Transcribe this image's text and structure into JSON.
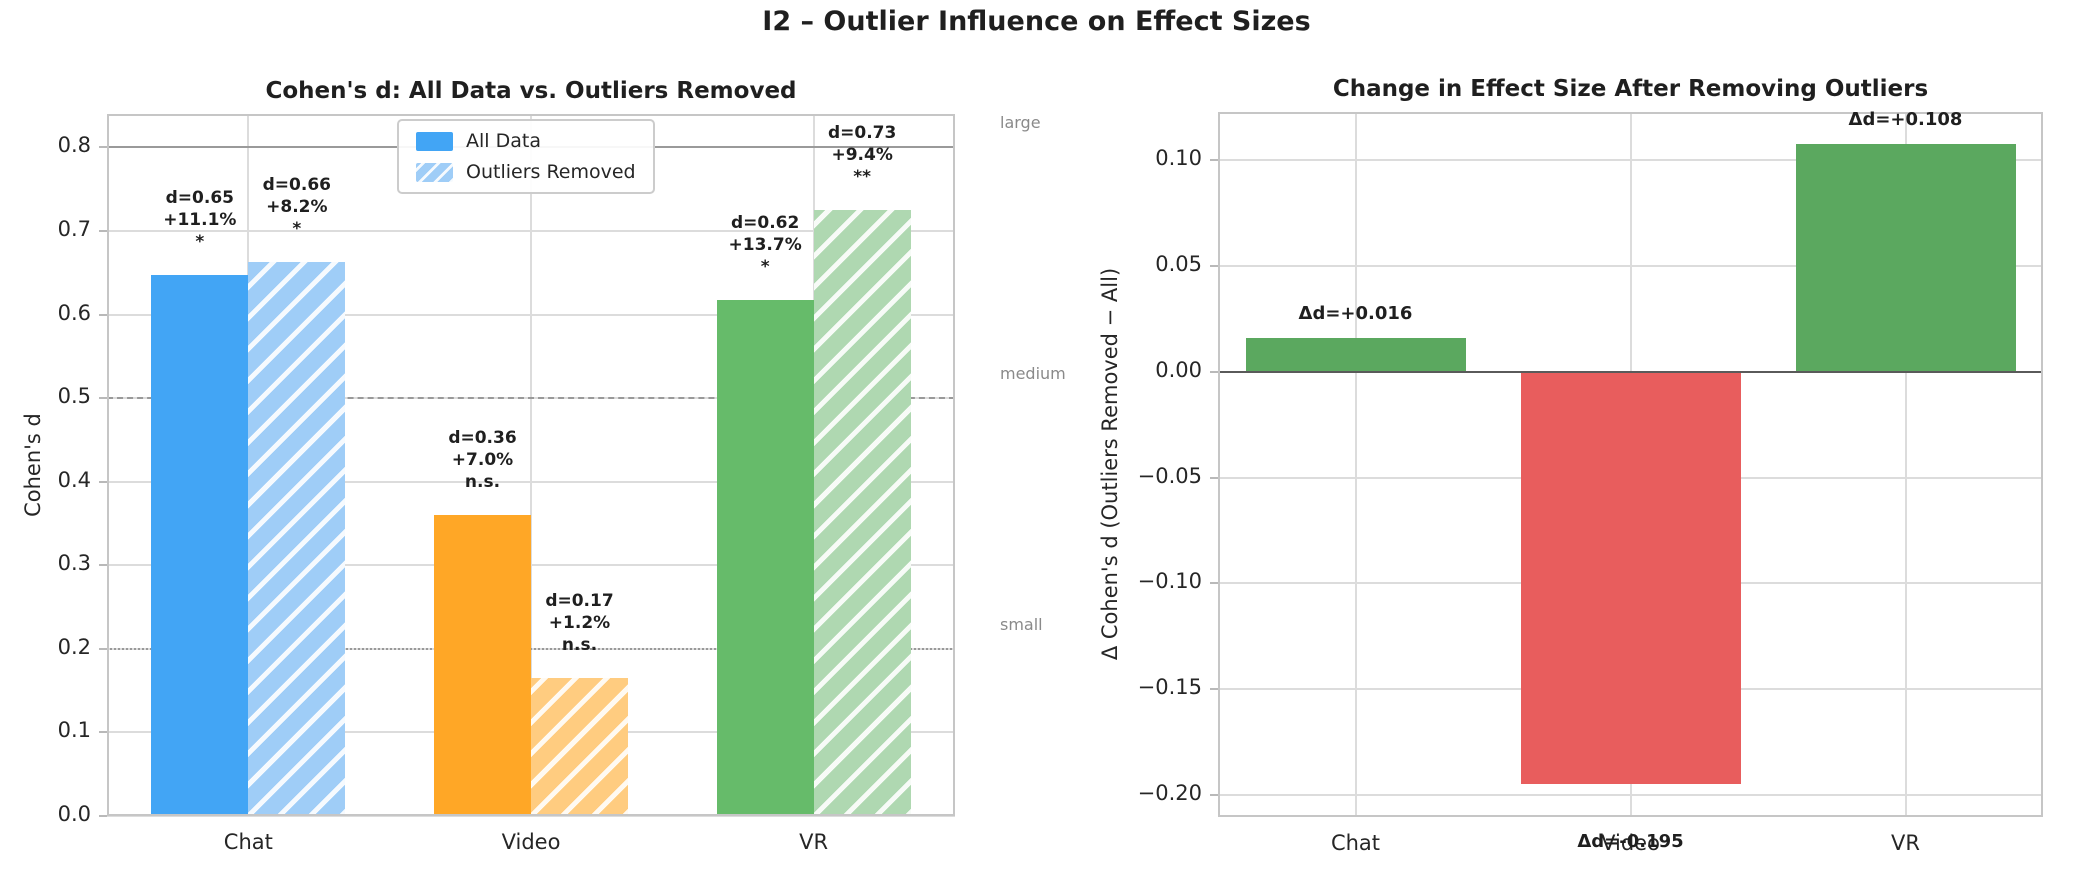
{
  "figure": {
    "title": "I2 – Outlier Influence on Effect Sizes"
  },
  "chart_data": [
    {
      "type": "bar",
      "title": "Cohen's d: All Data vs. Outliers Removed",
      "ylabel": "Cohen's d",
      "xlabel": "",
      "categories": [
        "Chat",
        "Video",
        "VR"
      ],
      "series": [
        {
          "name": "All Data",
          "values": [
            0.647,
            0.36,
            0.617
          ],
          "colors": [
            "#42A5F5",
            "#FFA726",
            "#66BB6A"
          ],
          "hatch": false,
          "bar_labels": [
            [
              "d=0.65",
              "+11.1%",
              "*"
            ],
            [
              "d=0.36",
              "+7.0%",
              "n.s."
            ],
            [
              "d=0.62",
              "+13.7%",
              "*"
            ]
          ]
        },
        {
          "name": "Outliers Removed",
          "values": [
            0.663,
            0.165,
            0.725
          ],
          "colors": [
            "#9FCDF7",
            "#FFCC80",
            "#AFD8B1"
          ],
          "hatch": true,
          "bar_labels": [
            [
              "d=0.66",
              "+8.2%",
              "*"
            ],
            [
              "d=0.17",
              "+1.2%",
              "n.s."
            ],
            [
              "d=0.73",
              "+9.4%",
              "**"
            ]
          ]
        }
      ],
      "yticks": [
        "0.0",
        "0.1",
        "0.2",
        "0.3",
        "0.4",
        "0.5",
        "0.6",
        "0.7",
        "0.8"
      ],
      "ylim": [
        0,
        0.84
      ],
      "grid": true,
      "legend_position": "upper center-left",
      "thresholds": [
        {
          "value": 0.2,
          "label": "small",
          "style": "dotted"
        },
        {
          "value": 0.5,
          "label": "medium",
          "style": "dashed"
        },
        {
          "value": 0.8,
          "label": "large",
          "style": "solid"
        }
      ]
    },
    {
      "type": "bar",
      "title": "Change in Effect Size After Removing Outliers",
      "ylabel": "Δ Cohen's d (Outliers Removed − All)",
      "xlabel": "",
      "categories": [
        "Chat",
        "Video",
        "VR"
      ],
      "values": [
        0.016,
        -0.195,
        0.108
      ],
      "bar_labels": [
        "Δd=+0.016",
        "Δd=-0.195",
        "Δd=+0.108"
      ],
      "colors": [
        "#5BA85F",
        "#E85D5D",
        "#5BA85F"
      ],
      "yticks": [
        {
          "v": 0.1,
          "label": "0.10"
        },
        {
          "v": 0.05,
          "label": "0.05"
        },
        {
          "v": 0.0,
          "label": "0.00"
        },
        {
          "v": -0.05,
          "label": "−0.05"
        },
        {
          "v": -0.1,
          "label": "−0.10"
        },
        {
          "v": -0.15,
          "label": "−0.15"
        },
        {
          "v": -0.2,
          "label": "−0.20"
        }
      ],
      "ylim": [
        -0.2104,
        0.1229
      ],
      "grid": true,
      "zero_line": true
    }
  ],
  "colors": {
    "grid": "#dcdcdc",
    "spine": "#c6c6c6",
    "text": "#262626",
    "threshold_line": "#999999",
    "threshold_label": "#8a8a8a",
    "zero_line": "#5a5a5a",
    "background": "#ffffff"
  }
}
